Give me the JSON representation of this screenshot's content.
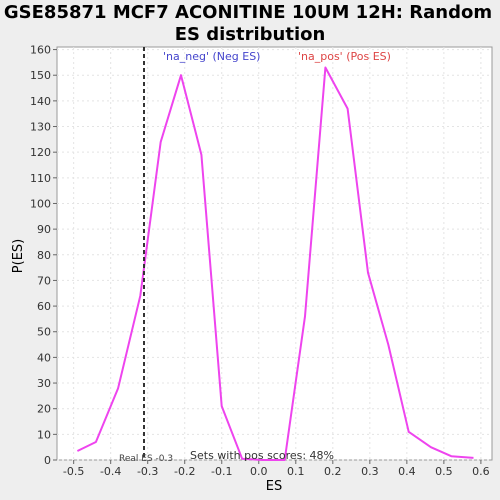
{
  "chart_data": {
    "type": "line",
    "title": "GSE85871 MCF7 ACONITINE 10UM 12H: Random ES distribution",
    "title_lines": [
      "GSE85871 MCF7 ACONITINE 10UM 12H: Random",
      "ES distribution"
    ],
    "xlabel": "ES",
    "ylabel": "P(ES)",
    "xlim": [
      -0.545,
      0.63
    ],
    "ylim": [
      0,
      161
    ],
    "xticks": [
      -0.5,
      -0.4,
      -0.3,
      -0.2,
      -0.1,
      0.0,
      0.1,
      0.2,
      0.3,
      0.4,
      0.5,
      0.6
    ],
    "yticks": [
      0,
      10,
      20,
      30,
      40,
      50,
      60,
      70,
      80,
      90,
      100,
      110,
      120,
      130,
      140,
      150,
      160
    ],
    "grid": true,
    "series": [
      {
        "color": "#ee44ee",
        "x": [
          -0.49,
          -0.44,
          -0.38,
          -0.32,
          -0.265,
          -0.21,
          -0.155,
          -0.1,
          -0.045,
          0.01,
          0.07,
          0.125,
          0.18,
          0.24,
          0.295,
          0.35,
          0.405,
          0.465,
          0.52,
          0.58
        ],
        "y": [
          3.5,
          7,
          28,
          64,
          124,
          150,
          119,
          21,
          0.5,
          0,
          0,
          56,
          153,
          137,
          73,
          45,
          11,
          5,
          1.5,
          0.8
        ]
      }
    ],
    "annotations": {
      "neg_label": "'na_neg' (Neg ES)",
      "neg_color": "#4444cc",
      "pos_label": "'na_pos' (Pos ES)",
      "pos_color": "#dd4444",
      "real_es_label": "Real ES -0.3",
      "real_es_value": -0.31,
      "footer": "Sets with pos scores: 48%"
    }
  }
}
